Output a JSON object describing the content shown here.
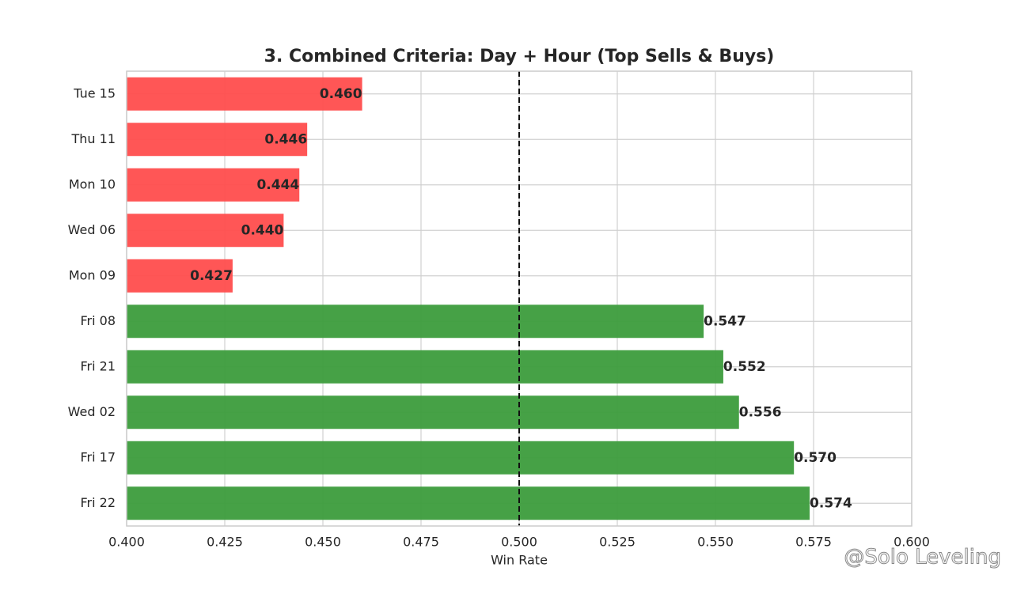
{
  "chart_data": {
    "type": "barh",
    "title": "3. Combined Criteria: Day + Hour (Top Sells & Buys)",
    "x_label": "Win Rate",
    "categories": [
      "Tue 15",
      "Thu 11",
      "Mon 10",
      "Wed 06",
      "Mon 09",
      "Fri 08",
      "Fri 21",
      "Wed 02",
      "Fri 17",
      "Fri 22"
    ],
    "values": [
      0.46,
      0.446,
      0.444,
      0.44,
      0.427,
      0.547,
      0.552,
      0.556,
      0.57,
      0.574
    ],
    "value_labels": [
      "0.460",
      "0.446",
      "0.444",
      "0.440",
      "0.427",
      "0.547",
      "0.552",
      "0.556",
      "0.570",
      "0.574"
    ],
    "colors": [
      "#ff4d4d",
      "#ff4d4d",
      "#ff4d4d",
      "#ff4d4d",
      "#ff4d4d",
      "#3c9c3c",
      "#3c9c3c",
      "#3c9c3c",
      "#3c9c3c",
      "#3c9c3c"
    ],
    "xlim": [
      0.4,
      0.6
    ],
    "xticks": [
      {
        "value": 0.4,
        "label": "0.400"
      },
      {
        "value": 0.425,
        "label": "0.425"
      },
      {
        "value": 0.45,
        "label": "0.450"
      },
      {
        "value": 0.475,
        "label": "0.475"
      },
      {
        "value": 0.5,
        "label": "0.500"
      },
      {
        "value": 0.525,
        "label": "0.525"
      },
      {
        "value": 0.55,
        "label": "0.550"
      },
      {
        "value": 0.575,
        "label": "0.575"
      },
      {
        "value": 0.6,
        "label": "0.600"
      }
    ],
    "reference_line": 0.5,
    "grid": true,
    "watermark": "@Solo Leveling"
  }
}
